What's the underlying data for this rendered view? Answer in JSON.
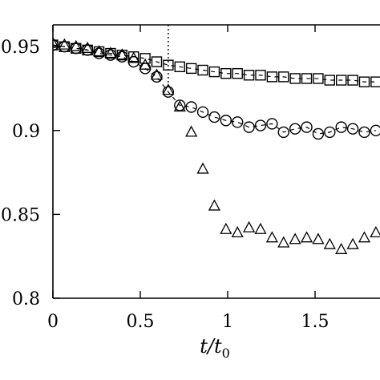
{
  "chart_data": {
    "type": "scatter",
    "title": "",
    "xlabel": "t/t",
    "xlabel_subscript": "0",
    "ylabel": "",
    "xlim": [
      0,
      1.87
    ],
    "ylim": [
      0.8,
      0.963
    ],
    "x_ticks": [
      {
        "value": 0,
        "label": "0"
      },
      {
        "value": 0.5,
        "label": "0.5"
      },
      {
        "value": 1,
        "label": "1"
      },
      {
        "value": 1.5,
        "label": "1.5"
      }
    ],
    "y_ticks": [
      {
        "value": 0.8,
        "label": "0.8"
      },
      {
        "value": 0.85,
        "label": "0.85"
      },
      {
        "value": 0.9,
        "label": "0.9"
      },
      {
        "value": 0.95,
        "label": "0.95"
      }
    ],
    "grid": false,
    "legend": "none",
    "annotations": [
      {
        "type": "vertical-dotted-line",
        "x": 0.66
      }
    ],
    "series": [
      {
        "marker": "square",
        "line": "dashed",
        "color": "#000000",
        "x": [
          0,
          0.066,
          0.132,
          0.198,
          0.264,
          0.33,
          0.396,
          0.462,
          0.528,
          0.594,
          0.66,
          0.726,
          0.792,
          0.858,
          0.924,
          0.99,
          1.056,
          1.122,
          1.188,
          1.254,
          1.32,
          1.386,
          1.452,
          1.518,
          1.584,
          1.65,
          1.716,
          1.782,
          1.848
        ],
        "values": [
          0.951,
          0.95,
          0.949,
          0.948,
          0.947,
          0.946,
          0.945,
          0.944,
          0.943,
          0.941,
          0.939,
          0.938,
          0.937,
          0.936,
          0.935,
          0.934,
          0.934,
          0.933,
          0.933,
          0.932,
          0.932,
          0.931,
          0.931,
          0.931,
          0.93,
          0.93,
          0.93,
          0.929,
          0.929
        ]
      },
      {
        "marker": "circle",
        "line": "dashed",
        "color": "#000000",
        "x": [
          0,
          0.066,
          0.132,
          0.198,
          0.264,
          0.33,
          0.396,
          0.462,
          0.528,
          0.594,
          0.66,
          0.726,
          0.792,
          0.858,
          0.924,
          0.99,
          1.056,
          1.122,
          1.188,
          1.254,
          1.32,
          1.386,
          1.452,
          1.518,
          1.584,
          1.65,
          1.716,
          1.782,
          1.848
        ],
        "values": [
          0.951,
          0.95,
          0.949,
          0.948,
          0.946,
          0.945,
          0.944,
          0.941,
          0.937,
          0.932,
          0.923,
          0.915,
          0.914,
          0.911,
          0.908,
          0.906,
          0.905,
          0.902,
          0.903,
          0.904,
          0.899,
          0.901,
          0.902,
          0.898,
          0.899,
          0.902,
          0.901,
          0.899,
          0.9
        ]
      },
      {
        "marker": "triangle",
        "line": "none",
        "color": "#000000",
        "x": [
          0,
          0.066,
          0.132,
          0.198,
          0.264,
          0.33,
          0.396,
          0.462,
          0.528,
          0.594,
          0.66,
          0.726,
          0.792,
          0.858,
          0.924,
          0.99,
          1.056,
          1.122,
          1.188,
          1.254,
          1.32,
          1.386,
          1.452,
          1.518,
          1.584,
          1.65,
          1.716,
          1.782,
          1.848
        ],
        "values": [
          0.952,
          0.951,
          0.95,
          0.949,
          0.947,
          0.946,
          0.945,
          0.943,
          0.939,
          0.933,
          0.924,
          0.914,
          0.899,
          0.877,
          0.855,
          0.841,
          0.839,
          0.842,
          0.841,
          0.836,
          0.833,
          0.835,
          0.836,
          0.835,
          0.832,
          0.829,
          0.832,
          0.836,
          0.839
        ]
      }
    ]
  }
}
